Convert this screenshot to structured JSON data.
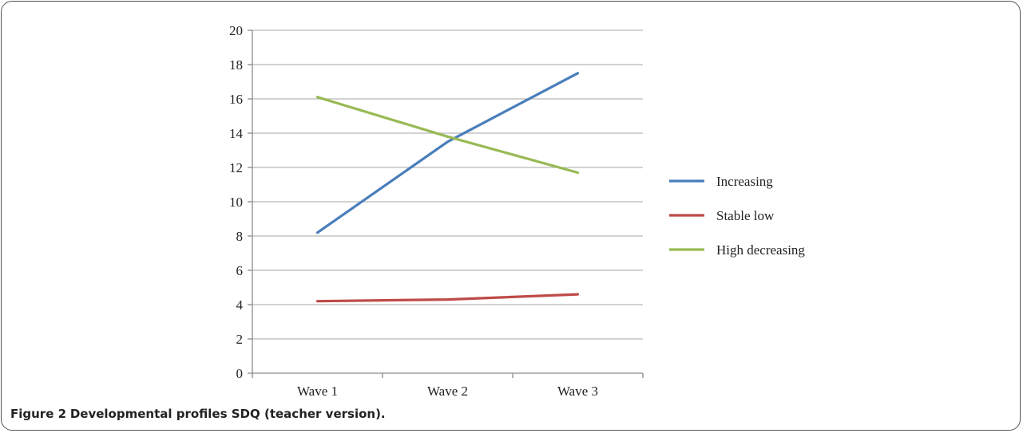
{
  "caption": {
    "label": "Figure 2",
    "text": "Developmental profiles SDQ (teacher version)."
  },
  "chart_data": {
    "type": "line",
    "categories": [
      "Wave 1",
      "Wave 2",
      "Wave 3"
    ],
    "series": [
      {
        "name": "Increasing",
        "values": [
          8.2,
          13.5,
          17.5
        ],
        "color": "#4a7ebb"
      },
      {
        "name": "Stable low",
        "values": [
          4.2,
          4.3,
          4.6
        ],
        "color": "#be4b48"
      },
      {
        "name": "High decreasing",
        "values": [
          16.1,
          13.8,
          11.7
        ],
        "color": "#98b954"
      }
    ],
    "ylim": [
      0,
      20
    ],
    "yticks": [
      0,
      2,
      4,
      6,
      8,
      10,
      12,
      14,
      16,
      18,
      20
    ],
    "grid": true,
    "legend": "right",
    "title": "",
    "xlabel": "",
    "ylabel": ""
  }
}
